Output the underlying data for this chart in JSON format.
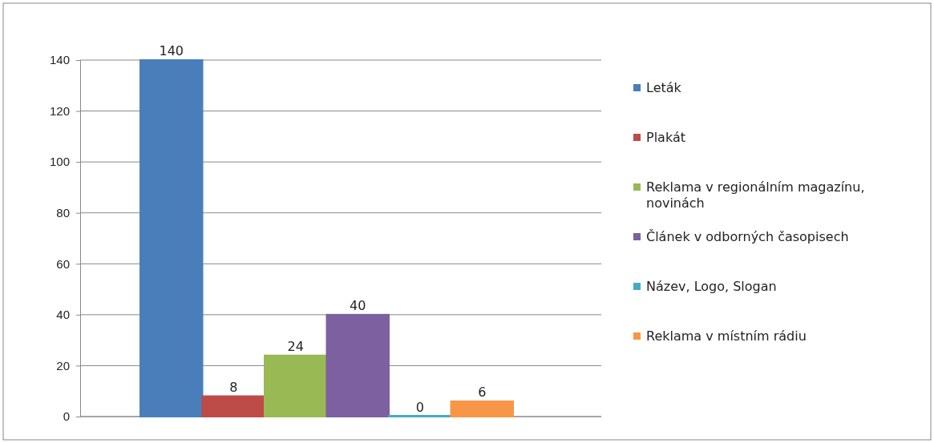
{
  "chart_data": {
    "type": "bar",
    "categories": [
      null
    ],
    "series": [
      {
        "name": "Leták",
        "color": "#4a7ebb",
        "values": [
          140
        ]
      },
      {
        "name": "Plakát",
        "color": "#be4b48",
        "values": [
          8
        ]
      },
      {
        "name": "Reklama v regionálním magazínu, novinách",
        "color": "#98b954",
        "values": [
          24
        ]
      },
      {
        "name": "Článek v odborných časopisech",
        "color": "#7d60a0",
        "values": [
          40
        ]
      },
      {
        "name": "Název, Logo, Slogan",
        "color": "#46aac5",
        "values": [
          0
        ]
      },
      {
        "name": "Reklama v místním rádiu",
        "color": "#f79646",
        "values": [
          6
        ]
      }
    ],
    "ylim": [
      0,
      140
    ],
    "yticks": [
      0,
      20,
      40,
      60,
      80,
      100,
      120,
      140
    ],
    "grid": "y",
    "legend": "right",
    "data_labels": true
  }
}
